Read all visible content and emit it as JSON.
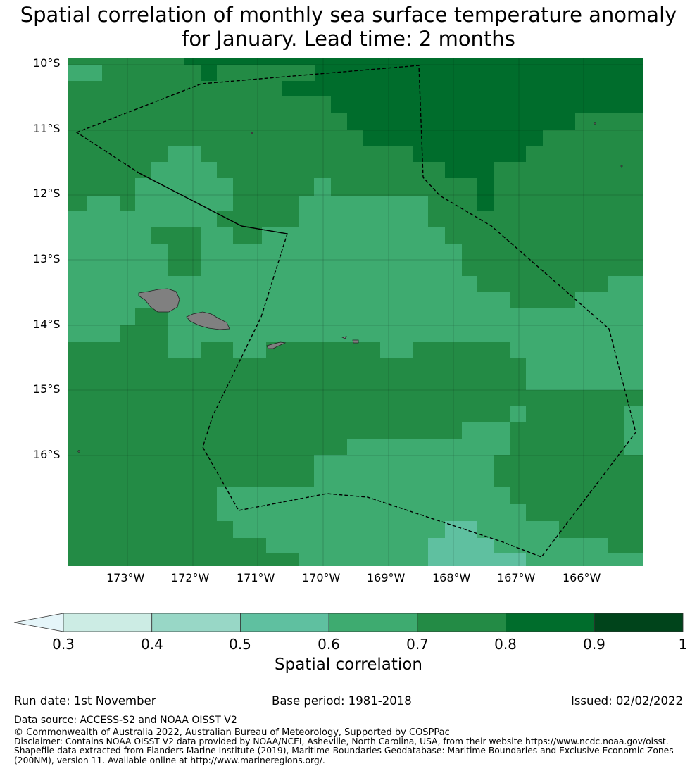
{
  "title_line1": "Spatial correlation of monthly sea surface temperature anomaly",
  "title_line2": "for January. Lead time: 2 months",
  "map": {
    "lat_labels": [
      "10°S",
      "11°S",
      "12°S",
      "13°S",
      "14°S",
      "15°S",
      "16°S"
    ],
    "lon_labels": [
      "173°W",
      "172°W",
      "171°W",
      "170°W",
      "169°W",
      "168°W",
      "167°W",
      "166°W"
    ],
    "extent": {
      "lon_min": -173.9,
      "lon_max": -165.1,
      "lat_min": -17.7,
      "lat_max": -9.9
    },
    "colors": {
      "bin_0.5_0.6": "#5fc0a0",
      "bin_0.6_0.7": "#3eab70",
      "bin_0.7_0.8": "#238b45",
      "bin_0.8_0.9": "#006d2c",
      "land": "#808080",
      "boundary": "#000000"
    }
  },
  "colorbar": {
    "label": "Spatial correlation",
    "ticks": [
      "0.3",
      "0.4",
      "0.5",
      "0.6",
      "0.7",
      "0.8",
      "0.9",
      "1"
    ],
    "bins": [
      {
        "from": 0.3,
        "to": 0.4,
        "color": "#ccece4"
      },
      {
        "from": 0.4,
        "to": 0.5,
        "color": "#98d7c6"
      },
      {
        "from": 0.5,
        "to": 0.6,
        "color": "#5fc0a0"
      },
      {
        "from": 0.6,
        "to": 0.7,
        "color": "#3eab70"
      },
      {
        "from": 0.7,
        "to": 0.8,
        "color": "#238b45"
      },
      {
        "from": 0.8,
        "to": 0.9,
        "color": "#006d2c"
      },
      {
        "from": 0.9,
        "to": 1.0,
        "color": "#00441b"
      }
    ],
    "under_color": "#e5f5f9"
  },
  "footer": {
    "run_date": "Run date: 1st November",
    "base_period": "Base period: 1981-2018",
    "issued": "Issued: 02/02/2022",
    "data_source": "Data source: ACCESS-S2 and NOAA OISST V2",
    "copyright": "© Commonwealth of Australia 2022, Australian Bureau of Meteorology, Supported by COSPPac",
    "disclaimer_1": "Disclaimer: Contains NOAA OISST V2 data provided by NOAA/NCEI, Asheville, North Carolina, USA, from their website https://www.ncdc.noaa.gov/oisst.",
    "disclaimer_2": "Shapefile data extracted from Flanders Marine Institute (2019), Maritime Boundaries Geodatabase: Maritime Boundaries and Exclusive Economic Zones",
    "disclaimer_3": "(200NM), version 11. Available online at http://www.marineregions.org/."
  }
}
